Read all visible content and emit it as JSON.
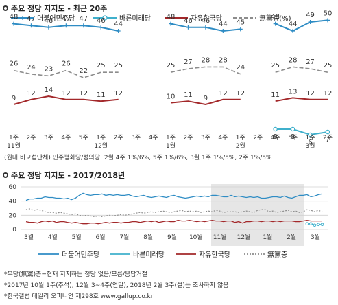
{
  "top_title": "주요 정당 지지도 - 최근 20주",
  "bottom_title": "주요 정당 지지도 - 2017/2018년",
  "top_note": "(원내 비교섭단체) 민주평화당/정의당: 2월 4주 1%/6%, 5주 1%/6%, 3월 1주 1%/5%, 2주 1%/5%",
  "footnotes": [
    "*무당(無黨)층=현재 지지하는 정당 없음/모름/응답거절",
    "*2017년 10월 1주(추석), 12월 3~4주(연말), 2018년 2월 3주(설)는 조사하지 않음",
    "*한국갤럽 데일리 오피니언 제298호 www.gallup.co.kr"
  ],
  "colors": {
    "dem": "#2e8cc4",
    "bar": "#3fb0cc",
    "kor": "#a3282a",
    "none": "#8c8c8c"
  },
  "chart_data": [
    {
      "type": "line",
      "title": "주요 정당 지지도 - 최근 20주",
      "week_labels": [
        "1주",
        "2주",
        "3주",
        "4주",
        "5주",
        "1주",
        "2주",
        "3주",
        "4주",
        "1주",
        "2주",
        "3주",
        "4주",
        "1주",
        "2주",
        "4주",
        "5주",
        "1주",
        "2주"
      ],
      "month_labels": [
        {
          "label": "11월",
          "at": 0
        },
        {
          "label": "12월",
          "at": 5
        },
        {
          "label": "1월",
          "at": 9
        },
        {
          "label": "2월",
          "at": 13
        },
        {
          "label": "3월",
          "at": 17
        }
      ],
      "series": [
        {
          "name": "더불어민주당",
          "color_key": "dem",
          "style": "solid-plus",
          "values": [
            48,
            47,
            46,
            47,
            47,
            46,
            44,
            null,
            null,
            48,
            46,
            46,
            44,
            45,
            null,
            48,
            44,
            49,
            50
          ]
        },
        {
          "name": "바른미래당",
          "color_key": "bar",
          "style": "solid-circle",
          "values": [
            null,
            null,
            null,
            null,
            null,
            null,
            null,
            null,
            null,
            null,
            null,
            null,
            null,
            null,
            null,
            8,
            8,
            6,
            7
          ]
        },
        {
          "name": "자유한국당",
          "color_key": "kor",
          "style": "solid",
          "values": [
            9,
            12,
            14,
            12,
            12,
            11,
            12,
            null,
            null,
            10,
            11,
            9,
            12,
            12,
            null,
            11,
            13,
            12,
            12
          ]
        },
        {
          "name": "無黨층(%)",
          "color_key": "none",
          "style": "dashed",
          "values": [
            26,
            24,
            23,
            26,
            22,
            25,
            25,
            null,
            null,
            25,
            27,
            28,
            28,
            24,
            null,
            25,
            28,
            27,
            25
          ]
        }
      ]
    },
    {
      "type": "line",
      "title": "주요 정당 지지도 - 2017/2018년",
      "ylim": [
        0,
        60
      ],
      "yticks": [
        0,
        20,
        40,
        60
      ],
      "xticks": [
        "3월",
        "4월",
        "5월",
        "6월",
        "7월",
        "8월",
        "9월",
        "10월",
        "11월",
        "12월",
        "1월",
        "2월",
        "3월"
      ],
      "series": [
        {
          "name": "더불어민주당",
          "color_key": "dem",
          "values": [
            41,
            43,
            43,
            44,
            44,
            46,
            45,
            45,
            44,
            44,
            43,
            44,
            42,
            44,
            48,
            51,
            49,
            48,
            49,
            49,
            50,
            48,
            49,
            48,
            49,
            48,
            48,
            49,
            47,
            46,
            47,
            48,
            46,
            45,
            46,
            47,
            46,
            45,
            47,
            48,
            46,
            45,
            44,
            45,
            46,
            47,
            46,
            47,
            46,
            48,
            48,
            47,
            46,
            46,
            48,
            46,
            47,
            46,
            45,
            46,
            45,
            46,
            44,
            44,
            45,
            46,
            46,
            45,
            47,
            45,
            44,
            46,
            48,
            48,
            49,
            46,
            47,
            49,
            50
          ]
        },
        {
          "name": "바른미래당",
          "color_key": "bar",
          "values": [
            null,
            null,
            null,
            null,
            null,
            null,
            null,
            null,
            null,
            null,
            null,
            null,
            null,
            null,
            null,
            null,
            null,
            null,
            null,
            null,
            null,
            null,
            null,
            null,
            null,
            null,
            null,
            null,
            null,
            null,
            null,
            null,
            null,
            null,
            null,
            null,
            null,
            null,
            null,
            null,
            null,
            null,
            null,
            null,
            null,
            null,
            null,
            null,
            null,
            null,
            null,
            null,
            null,
            null,
            null,
            null,
            null,
            null,
            null,
            null,
            null,
            null,
            null,
            null,
            null,
            null,
            null,
            null,
            null,
            null,
            null,
            null,
            null,
            null,
            8,
            8,
            6,
            7,
            7
          ]
        },
        {
          "name": "자유한국당",
          "color_key": "kor",
          "values": [
            11,
            10,
            10,
            9,
            11,
            12,
            11,
            12,
            10,
            11,
            11,
            10,
            9,
            10,
            9,
            8,
            8,
            9,
            9,
            8,
            9,
            10,
            9,
            10,
            10,
            9,
            10,
            10,
            11,
            11,
            10,
            11,
            12,
            11,
            12,
            10,
            11,
            12,
            11,
            11,
            13,
            12,
            12,
            13,
            12,
            11,
            12,
            11,
            12,
            13,
            12,
            12,
            11,
            12,
            12,
            10,
            11,
            9,
            11,
            11,
            12,
            12,
            11,
            12,
            12,
            11,
            12,
            11,
            12,
            12,
            12,
            11,
            11,
            12,
            13,
            12,
            12,
            12,
            12
          ]
        },
        {
          "name": "無黨층",
          "color_key": "none",
          "values": [
            28,
            29,
            27,
            28,
            27,
            25,
            24,
            24,
            23,
            24,
            23,
            22,
            21,
            22,
            20,
            19,
            20,
            19,
            18,
            19,
            18,
            19,
            20,
            19,
            20,
            21,
            20,
            21,
            22,
            23,
            24,
            23,
            24,
            25,
            24,
            25,
            26,
            25,
            24,
            25,
            26,
            27,
            25,
            26,
            25,
            26,
            24,
            25,
            26,
            25,
            27,
            26,
            24,
            25,
            25,
            25,
            24,
            25,
            26,
            25,
            24,
            27,
            28,
            28,
            25,
            26,
            24,
            25,
            26,
            27,
            25,
            26,
            24,
            25,
            28,
            27,
            25,
            27,
            25
          ]
        }
      ]
    }
  ]
}
